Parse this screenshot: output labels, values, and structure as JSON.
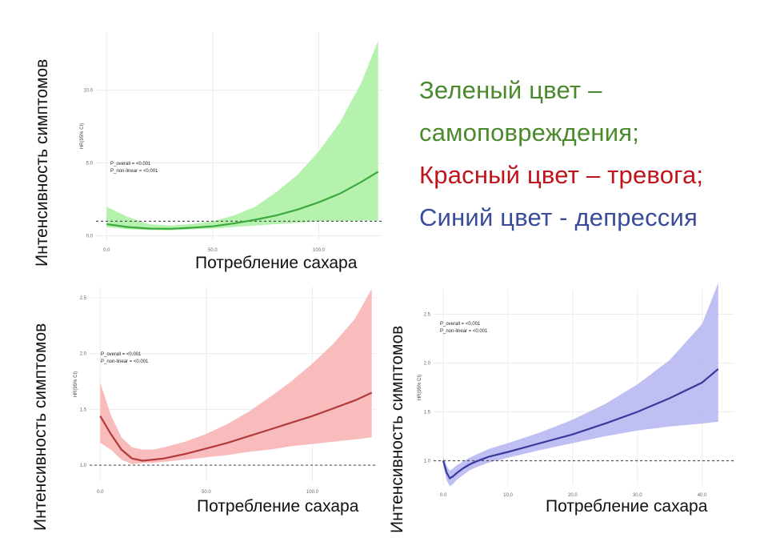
{
  "legend": {
    "green_line1": "Зеленый цвет –",
    "green_line2": "самоповреждения;",
    "red": "Красный цвет – тревога;",
    "blue": "Синий цвет - депрессия"
  },
  "colors": {
    "green_text": "#4a8a2c",
    "red_text": "#c0141b",
    "blue_text": "#3a4b9a",
    "green_line": "#3ea93e",
    "green_band": "#a8f0a0",
    "red_line": "#b23a3a",
    "red_band": "#f8b0b0",
    "blue_line": "#3a3a9c",
    "blue_band": "#b4b4f2"
  },
  "labels": {
    "y_label": "Интенсивность симптомов",
    "x_label": "Потребление сахара"
  },
  "chart_data": [
    {
      "type": "line",
      "color": "green",
      "ylabel": "HR(95% CI)",
      "xlim": [
        -5,
        130
      ],
      "ylim": [
        -0.3,
        14
      ],
      "xticks": [
        {
          "value": 0,
          "label": "0.0"
        },
        {
          "value": 50,
          "label": "50.0"
        },
        {
          "value": 100,
          "label": "100.0"
        }
      ],
      "yticks": [
        {
          "value": 0,
          "label": "0.0"
        },
        {
          "value": 5,
          "label": "5.0"
        },
        {
          "value": 10,
          "label": "10.0"
        }
      ],
      "reference_line": 1,
      "annotations": [
        "P_overall = <0.001",
        "P_non-linear = <0.001"
      ],
      "series": [
        {
          "x": [
            0,
            10,
            20,
            30,
            40,
            50,
            60,
            70,
            80,
            90,
            100,
            110,
            120,
            128
          ],
          "y": [
            0.8,
            0.6,
            0.5,
            0.48,
            0.55,
            0.65,
            0.85,
            1.1,
            1.4,
            1.8,
            2.3,
            2.9,
            3.7,
            4.4
          ],
          "lower": [
            0.6,
            0.45,
            0.4,
            0.38,
            0.45,
            0.5,
            0.6,
            0.7,
            0.8,
            0.9,
            1.0,
            1.0,
            1.05,
            1.05
          ],
          "upper": [
            2.0,
            1.3,
            0.8,
            0.7,
            0.8,
            1.0,
            1.4,
            2.0,
            3.0,
            4.2,
            5.8,
            7.8,
            10.5,
            13.4
          ]
        }
      ]
    },
    {
      "type": "line",
      "color": "red",
      "ylabel": "HR(95% CI)",
      "xlim": [
        -5,
        130
      ],
      "ylim": [
        0.85,
        2.6
      ],
      "xticks": [
        {
          "value": 0,
          "label": "0.0"
        },
        {
          "value": 50,
          "label": "50.0"
        },
        {
          "value": 100,
          "label": "100.0"
        }
      ],
      "yticks": [
        {
          "value": 1.0,
          "label": "1.0"
        },
        {
          "value": 1.5,
          "label": "1.5"
        },
        {
          "value": 2.0,
          "label": "2.0"
        },
        {
          "value": 2.5,
          "label": "2.5"
        }
      ],
      "reference_line": 1,
      "annotations": [
        "P_overall = <0.001",
        "P_non-linear = <0.001"
      ],
      "series": [
        {
          "x": [
            0,
            5,
            10,
            15,
            20,
            25,
            30,
            40,
            50,
            60,
            70,
            80,
            90,
            100,
            110,
            120,
            128
          ],
          "y": [
            1.44,
            1.28,
            1.14,
            1.06,
            1.04,
            1.05,
            1.06,
            1.1,
            1.15,
            1.2,
            1.26,
            1.32,
            1.38,
            1.44,
            1.51,
            1.58,
            1.65
          ],
          "lower": [
            1.2,
            1.14,
            1.05,
            1.01,
            1.02,
            1.02,
            1.03,
            1.05,
            1.07,
            1.09,
            1.12,
            1.14,
            1.17,
            1.19,
            1.21,
            1.23,
            1.25
          ],
          "upper": [
            1.74,
            1.45,
            1.25,
            1.16,
            1.14,
            1.14,
            1.16,
            1.21,
            1.28,
            1.37,
            1.48,
            1.61,
            1.75,
            1.91,
            2.09,
            2.31,
            2.58
          ]
        }
      ]
    },
    {
      "type": "line",
      "color": "blue",
      "ylabel": "HR(95% CI)",
      "xlim": [
        -1.5,
        45
      ],
      "ylim": [
        0.75,
        2.75
      ],
      "xticks": [
        {
          "value": 0,
          "label": "0.0"
        },
        {
          "value": 10,
          "label": "10.0"
        },
        {
          "value": 20,
          "label": "20.0"
        },
        {
          "value": 30,
          "label": "30.0"
        },
        {
          "value": 40,
          "label": "40.0"
        }
      ],
      "yticks": [
        {
          "value": 1.0,
          "label": "1.0"
        },
        {
          "value": 1.5,
          "label": "1.5"
        },
        {
          "value": 2.0,
          "label": "2.0"
        },
        {
          "value": 2.5,
          "label": "2.5"
        }
      ],
      "reference_line": 1,
      "annotations": [
        "P_overall = <0.001",
        "P_non-linear = <0.001"
      ],
      "series": [
        {
          "x": [
            0,
            0.5,
            1,
            1.5,
            2,
            3,
            4,
            5,
            7,
            10,
            15,
            20,
            25,
            30,
            35,
            40,
            42.5
          ],
          "y": [
            1.0,
            0.88,
            0.82,
            0.84,
            0.87,
            0.92,
            0.96,
            0.99,
            1.04,
            1.09,
            1.18,
            1.27,
            1.38,
            1.5,
            1.64,
            1.8,
            1.94
          ],
          "lower": [
            0.95,
            0.8,
            0.74,
            0.76,
            0.8,
            0.85,
            0.9,
            0.93,
            0.98,
            1.03,
            1.11,
            1.18,
            1.25,
            1.31,
            1.35,
            1.38,
            1.4
          ],
          "upper": [
            1.04,
            0.95,
            0.9,
            0.92,
            0.95,
            0.99,
            1.03,
            1.06,
            1.12,
            1.18,
            1.29,
            1.42,
            1.58,
            1.78,
            2.03,
            2.4,
            2.82
          ]
        }
      ]
    }
  ]
}
